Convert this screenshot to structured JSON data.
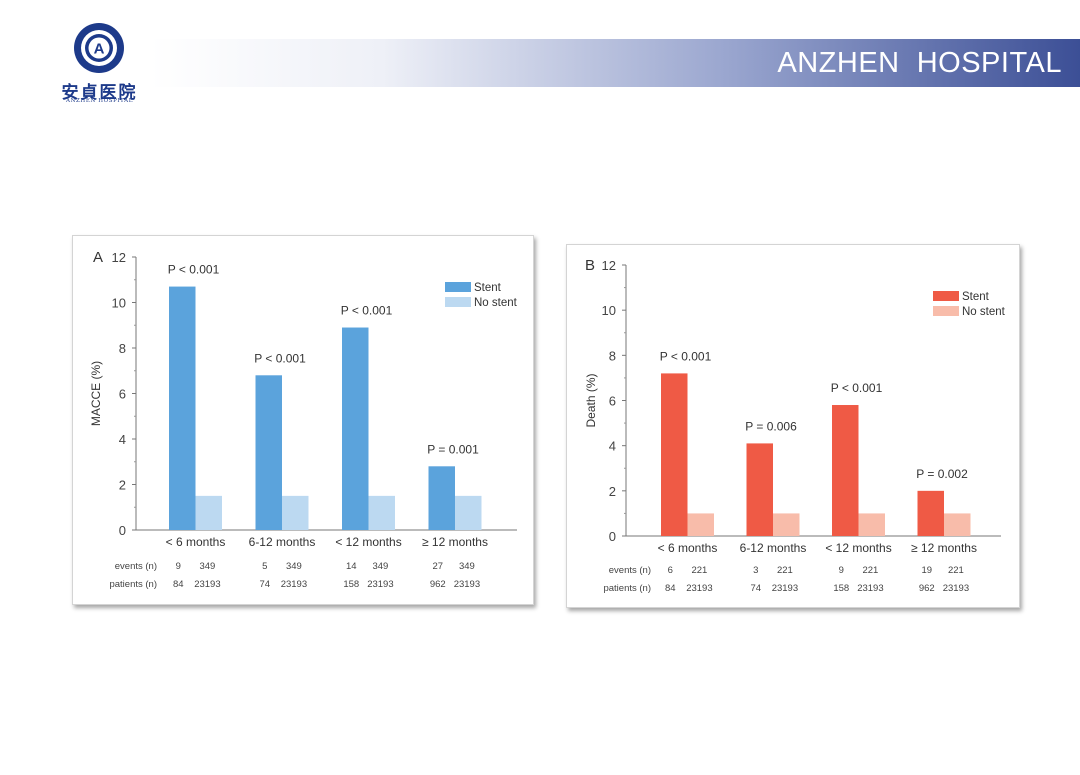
{
  "header": {
    "title": "ANZHEN  HOSPITAL"
  },
  "logo": {
    "name_cn": "安貞医院",
    "name_en": "ANZHEN HOSPITAL",
    "emblem_letter": "A"
  },
  "colors": {
    "stent_a": "#5ba3dc",
    "nostent_a": "#bcd9f1",
    "stent_b": "#ef5a45",
    "nostent_b": "#f8bcaa",
    "banner_dark": "#3c4f96"
  },
  "chart_data": [
    {
      "type": "bar",
      "panel_label": "A",
      "ylabel": "MACCE (%)",
      "ylim": [
        0,
        12
      ],
      "yticks": [
        "0",
        "2",
        "4",
        "6",
        "8",
        "10",
        "12"
      ],
      "categories": [
        "< 6 months",
        "6-12 months",
        "< 12 months",
        "≥ 12 months"
      ],
      "series": [
        {
          "name": "Stent",
          "values": [
            10.7,
            6.8,
            8.9,
            2.8
          ]
        },
        {
          "name": "No stent",
          "values": [
            1.5,
            1.5,
            1.5,
            1.5
          ]
        }
      ],
      "p_values": [
        "P < 0.001",
        "P < 0.001",
        "P < 0.001",
        "P = 0.001"
      ],
      "legend_position": "top-right",
      "table": {
        "row_labels": [
          "events (n)",
          "patients (n)"
        ],
        "events": [
          [
            "9",
            "349"
          ],
          [
            "5",
            "349"
          ],
          [
            "14",
            "349"
          ],
          [
            "27",
            "349"
          ]
        ],
        "patients": [
          [
            "84",
            "23193"
          ],
          [
            "74",
            "23193"
          ],
          [
            "158",
            "23193"
          ],
          [
            "962",
            "23193"
          ]
        ]
      }
    },
    {
      "type": "bar",
      "panel_label": "B",
      "ylabel": "Death (%)",
      "ylim": [
        0,
        12
      ],
      "yticks": [
        "0",
        "2",
        "4",
        "6",
        "8",
        "10",
        "12"
      ],
      "categories": [
        "< 6 months",
        "6-12 months",
        "< 12 months",
        "≥ 12 months"
      ],
      "series": [
        {
          "name": "Stent",
          "values": [
            7.2,
            4.1,
            5.8,
            2.0
          ]
        },
        {
          "name": "No stent",
          "values": [
            1.0,
            1.0,
            1.0,
            1.0
          ]
        }
      ],
      "p_values": [
        "P < 0.001",
        "P = 0.006",
        "P < 0.001",
        "P = 0.002"
      ],
      "legend_position": "top-right",
      "table": {
        "row_labels": [
          "events (n)",
          "patients (n)"
        ],
        "events": [
          [
            "6",
            "221"
          ],
          [
            "3",
            "221"
          ],
          [
            "9",
            "221"
          ],
          [
            "19",
            "221"
          ]
        ],
        "patients": [
          [
            "84",
            "23193"
          ],
          [
            "74",
            "23193"
          ],
          [
            "158",
            "23193"
          ],
          [
            "962",
            "23193"
          ]
        ]
      }
    }
  ]
}
